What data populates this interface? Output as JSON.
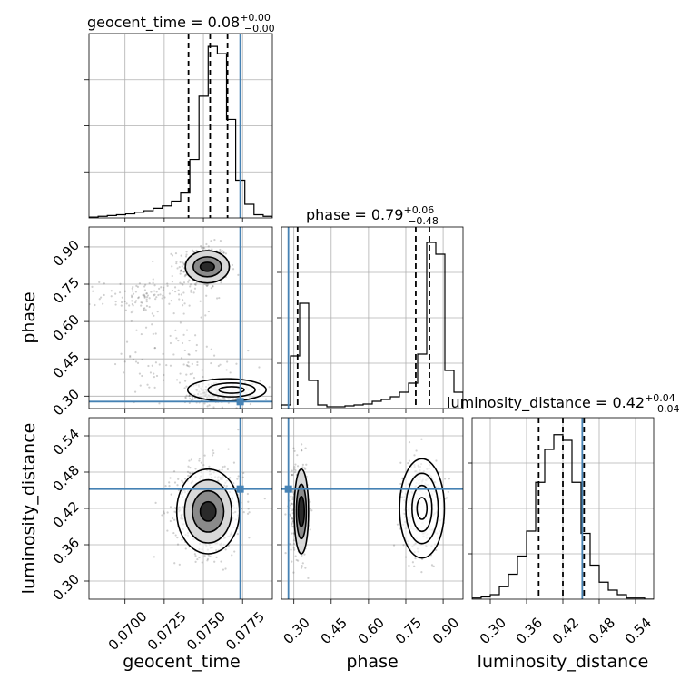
{
  "chart_data": {
    "type": "corner",
    "truth_color": "#4682b4",
    "parameters": [
      {
        "name": "geocent_time",
        "xlabel": "geocent_time",
        "range": [
          0.0677,
          0.0794
        ],
        "ticks": [
          "0.0700",
          "0.0725",
          "0.0750",
          "0.0775"
        ],
        "tick_values": [
          0.07,
          0.0725,
          0.075,
          0.0775
        ],
        "title": {
          "prefix": "geocent_time = ",
          "median": "0.08",
          "plus": "+0.00",
          "minus": "−0.00"
        },
        "truth": 0.07735,
        "quantiles": [
          0.07405,
          0.07543,
          0.07654
        ],
        "hist": {
          "edges_start": 0.0677,
          "bin_width": 0.000585,
          "counts": [
            1,
            2,
            3,
            4,
            5,
            7,
            9,
            12,
            15,
            21,
            31,
            73,
            152,
            214,
            205,
            123,
            47,
            17,
            4,
            2
          ],
          "ymax": 230
        }
      },
      {
        "name": "phase",
        "xlabel": "phase",
        "ylabel": "phase",
        "range": [
          0.25,
          0.98
        ],
        "ticks": [
          "0.30",
          "0.45",
          "0.60",
          "0.75",
          "0.90"
        ],
        "tick_values": [
          0.3,
          0.45,
          0.6,
          0.75,
          0.9
        ],
        "title": {
          "prefix": "phase = ",
          "median": "0.79",
          "plus": "+0.06",
          "minus": "−0.48"
        },
        "truth": 0.278,
        "quantiles": [
          0.315,
          0.79,
          0.845
        ],
        "hist": {
          "edges_start": 0.25,
          "bin_width": 0.0365,
          "counts": [
            4,
            58,
            116,
            31,
            4,
            2,
            2,
            3,
            4,
            5,
            8,
            10,
            13,
            18,
            28,
            60,
            183,
            170,
            42,
            18
          ],
          "ymax": 200
        }
      },
      {
        "name": "luminosity_distance",
        "xlabel": "luminosity_distance",
        "ylabel": "luminosity_distance",
        "range": [
          0.27,
          0.57
        ],
        "ticks": [
          "0.30",
          "0.36",
          "0.42",
          "0.48",
          "0.54"
        ],
        "tick_values": [
          0.3,
          0.36,
          0.42,
          0.48,
          0.54
        ],
        "title": {
          "prefix": "luminosity_distance = ",
          "median": "0.42",
          "plus": "+0.04",
          "minus": "−0.04"
        },
        "truth": 0.452,
        "quantiles": [
          0.38,
          0.42,
          0.455
        ],
        "hist": {
          "edges_start": 0.27,
          "bin_width": 0.015,
          "counts": [
            1,
            2,
            4,
            11,
            22,
            38,
            60,
            103,
            132,
            145,
            140,
            103,
            58,
            30,
            15,
            8,
            4,
            1,
            1,
            0
          ],
          "ymax": 160
        }
      }
    ],
    "pair_clusters": {
      "time_phase": [
        {
          "cx": 0.075,
          "cy": 0.82,
          "sx": 0.0008,
          "sy": 0.045,
          "n": 320
        },
        {
          "cx": 0.0762,
          "cy": 0.31,
          "sx": 0.001,
          "sy": 0.02,
          "n": 260
        },
        {
          "cx": 0.0715,
          "cy": 0.7,
          "sx": 0.0015,
          "sy": 0.035,
          "n": 120
        },
        {
          "cx": 0.073,
          "cy": 0.42,
          "sx": 0.0025,
          "sy": 0.09,
          "n": 110
        }
      ],
      "time_dist": [
        {
          "cx": 0.0754,
          "cy": 0.42,
          "sx": 0.0011,
          "sy": 0.038,
          "n": 650
        }
      ],
      "phase_dist": [
        {
          "cx": 0.32,
          "cy": 0.42,
          "sx": 0.018,
          "sy": 0.04,
          "n": 300
        },
        {
          "cx": 0.81,
          "cy": 0.425,
          "sx": 0.04,
          "sy": 0.038,
          "n": 420
        }
      ]
    },
    "contours": {
      "time_phase": [
        {
          "cx": 0.07525,
          "cy": 0.82,
          "rx": 0.00045,
          "ry": 0.018
        },
        {
          "cx": 0.07525,
          "cy": 0.82,
          "rx": 0.0009,
          "ry": 0.04
        },
        {
          "cx": 0.07525,
          "cy": 0.82,
          "rx": 0.0014,
          "ry": 0.065
        },
        {
          "cx": 0.0768,
          "cy": 0.325,
          "rx": 0.0008,
          "ry": 0.013
        },
        {
          "cx": 0.0768,
          "cy": 0.325,
          "rx": 0.0015,
          "ry": 0.028
        },
        {
          "cx": 0.0765,
          "cy": 0.325,
          "rx": 0.0025,
          "ry": 0.045
        }
      ],
      "time_dist": [
        {
          "cx": 0.0753,
          "cy": 0.415,
          "rx": 0.0005,
          "ry": 0.016
        },
        {
          "cx": 0.0753,
          "cy": 0.415,
          "rx": 0.001,
          "ry": 0.034
        },
        {
          "cx": 0.0753,
          "cy": 0.415,
          "rx": 0.0015,
          "ry": 0.052
        },
        {
          "cx": 0.0753,
          "cy": 0.415,
          "rx": 0.002,
          "ry": 0.07
        }
      ],
      "phase_dist": [
        {
          "cx": 0.33,
          "cy": 0.415,
          "rx": 0.012,
          "ry": 0.025
        },
        {
          "cx": 0.33,
          "cy": 0.415,
          "rx": 0.02,
          "ry": 0.045
        },
        {
          "cx": 0.33,
          "cy": 0.415,
          "rx": 0.029,
          "ry": 0.07
        },
        {
          "cx": 0.815,
          "cy": 0.42,
          "rx": 0.02,
          "ry": 0.018
        },
        {
          "cx": 0.815,
          "cy": 0.42,
          "rx": 0.04,
          "ry": 0.038
        },
        {
          "cx": 0.815,
          "cy": 0.42,
          "rx": 0.065,
          "ry": 0.058
        },
        {
          "cx": 0.815,
          "cy": 0.42,
          "rx": 0.09,
          "ry": 0.082
        }
      ]
    },
    "grid": true
  }
}
